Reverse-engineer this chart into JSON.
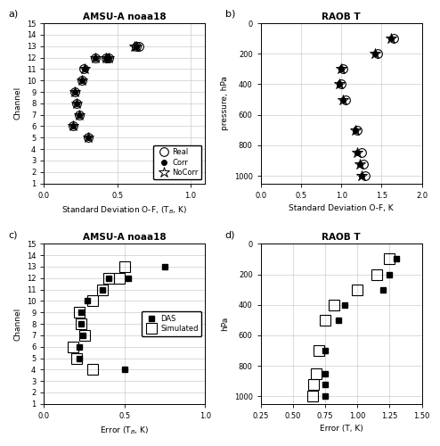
{
  "panel_a": {
    "title": "AMSU-A noaa18",
    "xlabel": "Standard Deviation O-F, (T$_B$, K)",
    "ylabel": "Channel",
    "xlim": [
      0,
      1.1
    ],
    "ylim": [
      1,
      15
    ],
    "yticks": [
      1,
      2,
      3,
      4,
      5,
      6,
      7,
      8,
      9,
      10,
      11,
      12,
      13,
      14,
      15
    ],
    "xticks": [
      0,
      0.5,
      1.0
    ],
    "real": {
      "x": [
        0.2,
        0.21,
        0.22,
        0.24,
        0.26,
        0.27,
        0.3,
        0.35,
        0.42,
        0.44,
        0.63,
        0.65
      ],
      "y": [
        6,
        9,
        8,
        7,
        10,
        11,
        5,
        12,
        12,
        12,
        13,
        13
      ]
    },
    "corr": {
      "x": [
        0.2,
        0.21,
        0.22,
        0.24,
        0.26,
        0.28,
        0.3,
        0.35,
        0.42,
        0.44,
        0.63,
        0.63
      ],
      "y": [
        6,
        9,
        8,
        7,
        10,
        11,
        5,
        12,
        12,
        12,
        13,
        13
      ]
    },
    "nocorr": {
      "x": [
        0.2,
        0.21,
        0.22,
        0.24,
        0.26,
        0.28,
        0.3,
        0.35,
        0.42,
        0.44,
        0.62,
        0.63
      ],
      "y": [
        6,
        9,
        8,
        7,
        10,
        11,
        5,
        12,
        12,
        12,
        13,
        13
      ]
    }
  },
  "panel_b": {
    "title": "RAOB T",
    "xlabel": "Standard Deviation O-F, K",
    "ylabel": "pressure, hPa",
    "xlim": [
      0,
      2
    ],
    "ylim": [
      1050,
      0
    ],
    "yticks": [
      0,
      200,
      400,
      600,
      800,
      1000
    ],
    "xticks": [
      0,
      0.5,
      1.0,
      1.5,
      2.0
    ],
    "real": {
      "x": [
        1.3,
        1.27,
        1.25,
        1.2,
        1.05,
        1.0,
        1.02,
        1.45,
        1.65
      ],
      "y": [
        1000,
        925,
        850,
        700,
        500,
        400,
        300,
        200,
        100
      ]
    },
    "corr": {
      "x": [
        1.25,
        1.23,
        1.2,
        1.18,
        1.02,
        0.98,
        1.0,
        1.42,
        1.62
      ],
      "y": [
        1000,
        925,
        850,
        700,
        500,
        400,
        300,
        200,
        100
      ]
    },
    "nocorr": {
      "x": [
        1.25,
        1.23,
        1.2,
        1.18,
        1.02,
        0.98,
        1.0,
        1.42,
        1.62
      ],
      "y": [
        1000,
        925,
        850,
        700,
        500,
        400,
        300,
        200,
        100
      ]
    }
  },
  "panel_c": {
    "title": "AMSU-A noaa18",
    "xlabel": "Error (T$_{B}$, K)",
    "ylabel": "Channel",
    "xlim": [
      0,
      1.0
    ],
    "ylim": [
      1,
      15
    ],
    "yticks": [
      1,
      2,
      3,
      4,
      5,
      6,
      7,
      8,
      9,
      10,
      11,
      12,
      13,
      14,
      15
    ],
    "xticks": [
      0,
      0.5,
      1.0
    ],
    "das": {
      "x": [
        0.22,
        0.22,
        0.23,
        0.23,
        0.24,
        0.27,
        0.36,
        0.4,
        0.5,
        0.52,
        0.75
      ],
      "y": [
        6,
        5,
        9,
        8,
        7,
        10,
        11,
        12,
        4,
        12,
        13
      ]
    },
    "simulated": {
      "x": [
        0.18,
        0.2,
        0.22,
        0.23,
        0.25,
        0.3,
        0.36,
        0.4,
        0.3,
        0.47,
        0.5
      ],
      "y": [
        6,
        5,
        9,
        8,
        7,
        10,
        11,
        12,
        4,
        12,
        13
      ]
    }
  },
  "panel_d": {
    "title": "RAOB T",
    "xlabel": "Error (T, K)",
    "ylabel": "hPa",
    "xlim": [
      0.25,
      1.5
    ],
    "ylim": [
      1050,
      0
    ],
    "yticks": [
      0,
      200,
      400,
      600,
      800,
      1000
    ],
    "xticks": [
      0.25,
      0.5,
      0.75,
      1.0,
      1.25,
      1.5
    ],
    "das": {
      "x": [
        0.75,
        0.75,
        0.75,
        0.75,
        0.85,
        0.9,
        1.2,
        1.25,
        1.3
      ],
      "y": [
        1000,
        925,
        850,
        700,
        500,
        400,
        300,
        200,
        100
      ]
    },
    "simulated": {
      "x": [
        0.65,
        0.66,
        0.68,
        0.7,
        0.75,
        0.82,
        1.0,
        1.15,
        1.25
      ],
      "y": [
        1000,
        925,
        850,
        700,
        500,
        400,
        300,
        200,
        100
      ]
    }
  }
}
